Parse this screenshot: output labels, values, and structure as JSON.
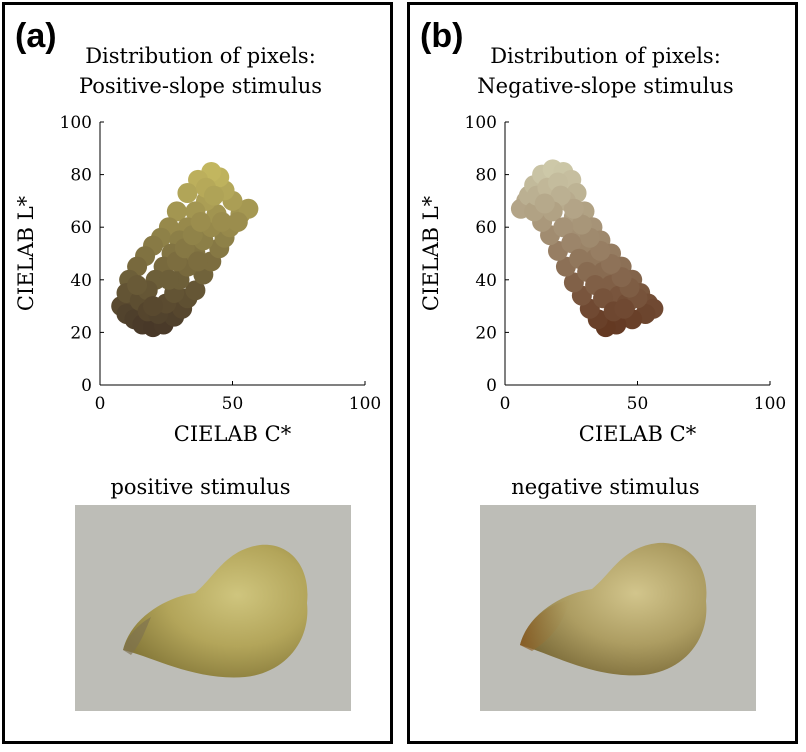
{
  "panels": [
    {
      "letter": "(a)",
      "title_line1": "Distribution of pixels:",
      "title_line2": "Positive-slope stimulus",
      "stimulus_label": "positive stimulus"
    },
    {
      "letter": "(b)",
      "title_line1": "Distribution of pixels:",
      "title_line2": "Negative-slope stimulus",
      "stimulus_label": "negative stimulus"
    }
  ],
  "chart_data": [
    {
      "type": "scatter",
      "title": "Distribution of pixels: Positive-slope stimulus",
      "xlabel": "CIELAB C*",
      "ylabel": "CIELAB L*",
      "xlim": [
        0,
        100
      ],
      "ylim": [
        0,
        100
      ],
      "xticks": [
        0,
        50,
        100
      ],
      "yticks": [
        0,
        20,
        40,
        60,
        80,
        100
      ],
      "grid": false,
      "series": [
        {
          "points": [
            [
              8,
              30
            ],
            [
              10,
              27
            ],
            [
              13,
              25
            ],
            [
              16,
              23
            ],
            [
              20,
              22
            ],
            [
              24,
              23
            ],
            [
              28,
              26
            ],
            [
              31,
              29
            ],
            [
              33,
              33
            ],
            [
              36,
              36
            ],
            [
              39,
              42
            ],
            [
              42,
              47
            ],
            [
              45,
              52
            ],
            [
              47,
              56
            ],
            [
              49,
              60
            ],
            [
              53,
              65
            ],
            [
              56,
              67
            ],
            [
              50,
              70
            ],
            [
              47,
              74
            ],
            [
              45,
              79
            ],
            [
              42,
              81
            ],
            [
              37,
              78
            ],
            [
              33,
              73
            ],
            [
              29,
              66
            ],
            [
              26,
              60
            ],
            [
              23,
              56
            ],
            [
              20,
              53
            ],
            [
              17,
              49
            ],
            [
              14,
              45
            ],
            [
              11,
              40
            ],
            [
              10,
              35
            ],
            [
              15,
              32
            ],
            [
              18,
              28
            ],
            [
              22,
              27
            ],
            [
              25,
              31
            ],
            [
              28,
              35
            ],
            [
              30,
              40
            ],
            [
              33,
              45
            ],
            [
              36,
              50
            ],
            [
              39,
              55
            ],
            [
              42,
              60
            ],
            [
              44,
              65
            ],
            [
              40,
              70
            ],
            [
              36,
              66
            ],
            [
              33,
              60
            ],
            [
              30,
              55
            ],
            [
              27,
              50
            ],
            [
              24,
              45
            ],
            [
              21,
              40
            ],
            [
              18,
              36
            ],
            [
              26,
              40
            ],
            [
              29,
              47
            ],
            [
              32,
              52
            ],
            [
              35,
              57
            ],
            [
              38,
              62
            ],
            [
              40,
              75
            ],
            [
              43,
              72
            ],
            [
              20,
              30
            ],
            [
              14,
              38
            ],
            [
              37,
              47
            ],
            [
              46,
              62
            ],
            [
              52,
              62
            ]
          ]
        }
      ]
    },
    {
      "type": "scatter",
      "title": "Distribution of pixels: Negative-slope stimulus",
      "xlabel": "CIELAB C*",
      "ylabel": "CIELAB L*",
      "xlim": [
        0,
        100
      ],
      "ylim": [
        0,
        100
      ],
      "xticks": [
        0,
        50,
        100
      ],
      "yticks": [
        0,
        20,
        40,
        60,
        80,
        100
      ],
      "grid": false,
      "series": [
        {
          "points": [
            [
              8,
              70
            ],
            [
              6,
              67
            ],
            [
              9,
              72
            ],
            [
              11,
              76
            ],
            [
              14,
              80
            ],
            [
              18,
              82
            ],
            [
              22,
              81
            ],
            [
              25,
              78
            ],
            [
              27,
              73
            ],
            [
              30,
              66
            ],
            [
              33,
              60
            ],
            [
              36,
              55
            ],
            [
              40,
              50
            ],
            [
              44,
              45
            ],
            [
              48,
              40
            ],
            [
              51,
              35
            ],
            [
              54,
              31
            ],
            [
              56,
              29
            ],
            [
              53,
              27
            ],
            [
              48,
              25
            ],
            [
              42,
              23
            ],
            [
              38,
              22
            ],
            [
              35,
              25
            ],
            [
              32,
              29
            ],
            [
              29,
              34
            ],
            [
              26,
              39
            ],
            [
              23,
              45
            ],
            [
              20,
              51
            ],
            [
              17,
              57
            ],
            [
              14,
              62
            ],
            [
              11,
              66
            ],
            [
              12,
              72
            ],
            [
              16,
              75
            ],
            [
              20,
              77
            ],
            [
              23,
              70
            ],
            [
              26,
              64
            ],
            [
              28,
              58
            ],
            [
              31,
              53
            ],
            [
              34,
              48
            ],
            [
              37,
              43
            ],
            [
              40,
              38
            ],
            [
              43,
              34
            ],
            [
              46,
              31
            ],
            [
              50,
              33
            ],
            [
              47,
              37
            ],
            [
              44,
              41
            ],
            [
              40,
              46
            ],
            [
              36,
              51
            ],
            [
              32,
              56
            ],
            [
              29,
              61
            ],
            [
              26,
              67
            ],
            [
              21,
              72
            ],
            [
              18,
              66
            ],
            [
              22,
              60
            ],
            [
              25,
              54
            ],
            [
              28,
              48
            ],
            [
              31,
              43
            ],
            [
              34,
              38
            ],
            [
              37,
              33
            ],
            [
              41,
              28
            ],
            [
              45,
              29
            ],
            [
              15,
              69
            ]
          ]
        }
      ]
    }
  ]
}
